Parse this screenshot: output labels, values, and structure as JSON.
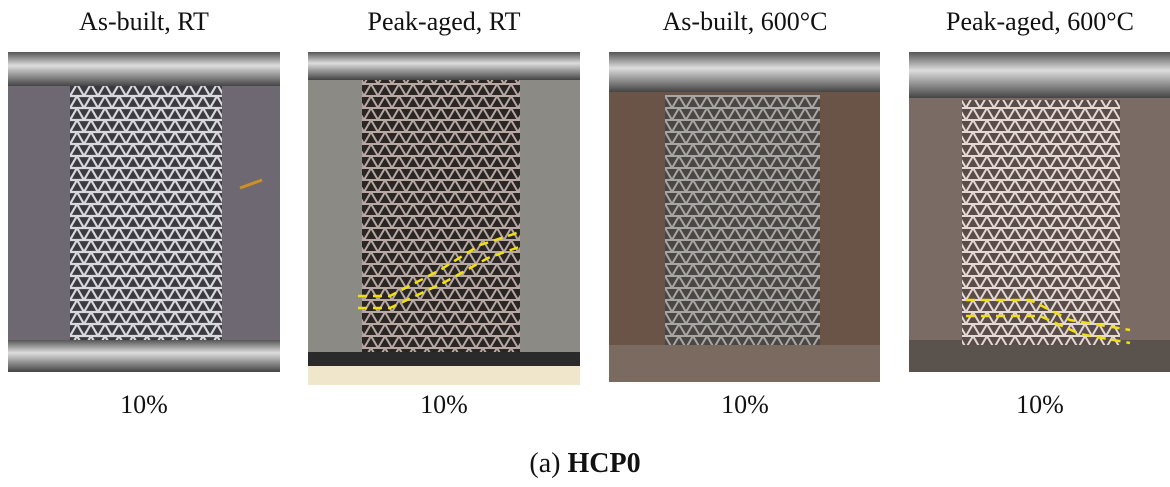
{
  "panels": [
    {
      "title": "As-built, RT",
      "strain": "10%"
    },
    {
      "title": "Peak-aged, RT",
      "strain": "10%"
    },
    {
      "title": "As-built, 600°C",
      "strain": "10%"
    },
    {
      "title": "Peak-aged, 600°C",
      "strain": "10%"
    }
  ],
  "caption": {
    "label": "(a)",
    "name": "HCP0"
  }
}
